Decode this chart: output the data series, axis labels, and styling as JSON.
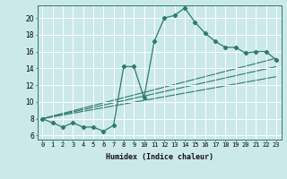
{
  "title": "",
  "xlabel": "Humidex (Indice chaleur)",
  "bg_color": "#cce9ea",
  "line_color": "#2d7a6e",
  "grid_color": "#b0d8da",
  "xlim": [
    -0.5,
    23.5
  ],
  "ylim": [
    5.5,
    21.5
  ],
  "xticks": [
    0,
    1,
    2,
    3,
    4,
    5,
    6,
    7,
    8,
    9,
    10,
    11,
    12,
    13,
    14,
    15,
    16,
    17,
    18,
    19,
    20,
    21,
    22,
    23
  ],
  "yticks": [
    6,
    8,
    10,
    12,
    14,
    16,
    18,
    20
  ],
  "main_x": [
    0,
    1,
    2,
    3,
    4,
    5,
    6,
    7,
    8,
    9,
    10,
    11,
    12,
    13,
    14,
    15,
    16,
    17,
    18,
    19,
    20,
    21,
    22,
    23
  ],
  "main_y": [
    8.0,
    7.5,
    7.0,
    7.5,
    7.0,
    7.0,
    6.5,
    7.2,
    14.2,
    14.2,
    10.5,
    17.2,
    20.0,
    20.3,
    21.2,
    19.5,
    18.2,
    17.2,
    16.5,
    16.5,
    15.8,
    16.0,
    16.0,
    15.0
  ],
  "trend1_x": [
    0,
    23
  ],
  "trend1_y": [
    8.0,
    15.2
  ],
  "trend2_x": [
    0,
    23
  ],
  "trend2_y": [
    8.0,
    14.2
  ],
  "trend3_x": [
    0,
    23
  ],
  "trend3_y": [
    8.0,
    13.0
  ]
}
